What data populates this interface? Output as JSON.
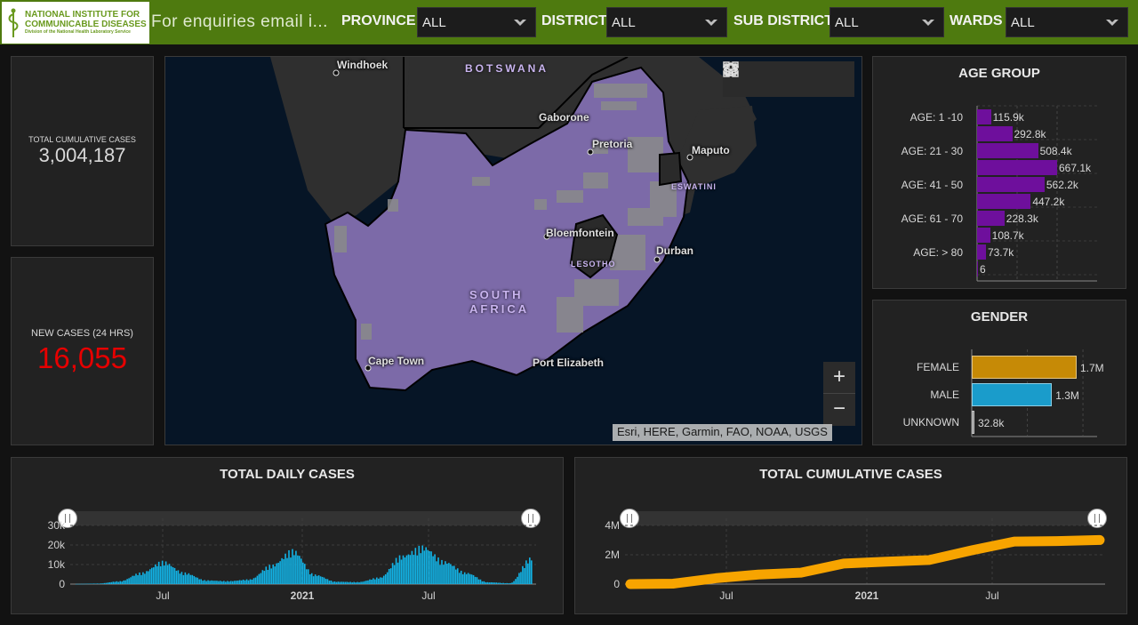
{
  "header": {
    "logo_line1": "NATIONAL INSTITUTE FOR",
    "logo_line2": "COMMUNICABLE DISEASES",
    "logo_line3": "Division of the National Health Laboratory Service",
    "enquiry": "For enquiries email i...",
    "filters": [
      {
        "label": "PROVINCE",
        "value": "ALL"
      },
      {
        "label": "DISTRICT",
        "value": "ALL"
      },
      {
        "label": "SUB DISTRICT",
        "value": "ALL"
      },
      {
        "label": "WARDS",
        "value": "ALL"
      }
    ]
  },
  "indicators": {
    "total": {
      "label": "TOTAL CUMULATIVE CASES",
      "value": "3,004,187"
    },
    "new": {
      "label": "NEW CASES (24 HRS)",
      "value": "16,055",
      "color": "#e60000"
    }
  },
  "map": {
    "attribution": "Esri, HERE, Garmin, FAO, NOAA, USGS",
    "tools": [
      "home-icon",
      "legend-list-icon",
      "layers-icon",
      "qr-basemap-icon"
    ],
    "zoom_in": "+",
    "zoom_out": "−",
    "cities": {
      "windhoek": "Windhoek",
      "gaborone": "Gaborone",
      "pretoria": "Pretoria",
      "maputo": "Maputo",
      "bloemfontein": "Bloemfontein",
      "durban": "Durban",
      "cape_town": "Cape Town",
      "port_elizabeth": "Port Elizabeth"
    },
    "countries": {
      "botswana": "BOTSWANA",
      "eswatini": "ESWATINI",
      "lesotho": "LESOTHO",
      "south_africa_1": "SOUTH",
      "south_africa_2": "AFRICA"
    },
    "colors": {
      "ocean": "#061526",
      "land": "#2f2f2f",
      "south_africa": "#7c6aa8",
      "urban": "#8a8a8a"
    }
  },
  "age_group": {
    "title": "AGE GROUP",
    "axis_labels": [
      "AGE: 1 -10",
      "AGE: 21 - 30",
      "AGE: 41 - 50",
      "AGE: 61 - 70",
      "AGE: > 80"
    ],
    "color": "#6e0f9c",
    "chart_data": {
      "type": "bar",
      "value_labels": [
        "115.9k",
        "292.8k",
        "508.4k",
        "667.1k",
        "562.2k",
        "447.2k",
        "228.3k",
        "108.7k",
        "73.7k",
        "6"
      ],
      "values": [
        115900,
        292800,
        508400,
        667100,
        562200,
        447200,
        228300,
        108700,
        73700,
        6
      ]
    }
  },
  "gender": {
    "title": "GENDER",
    "chart_data": {
      "type": "bar",
      "categories": [
        "FEMALE",
        "MALE",
        "UNKNOWN"
      ],
      "values": [
        1700000,
        1300000,
        32800
      ],
      "value_labels": [
        "1.7M",
        "1.3M",
        "32.8k"
      ],
      "colors": [
        "#c68a06",
        "#1a9ccb",
        "#8a8a8a"
      ]
    }
  },
  "daily": {
    "title": "TOTAL DAILY CASES",
    "y_ticks": [
      "30k",
      "20k",
      "10k",
      "0"
    ],
    "x_ticks": [
      "Jul",
      "2021",
      "Jul"
    ],
    "color": "#12b3e6",
    "chart_data": {
      "type": "bar",
      "ylim": [
        0,
        30000
      ],
      "x": [
        "2020-03",
        "2020-04",
        "2020-05",
        "2020-06",
        "2020-07",
        "2020-08",
        "2020-09",
        "2020-10",
        "2020-11",
        "2020-12",
        "2021-01",
        "2021-02",
        "2021-03",
        "2021-04",
        "2021-05",
        "2021-06",
        "2021-07",
        "2021-08",
        "2021-09",
        "2021-10",
        "2021-11",
        "2021-12"
      ],
      "values": [
        100,
        300,
        1500,
        6000,
        12000,
        6000,
        2000,
        1600,
        2500,
        10000,
        18000,
        5000,
        1300,
        1100,
        3500,
        15000,
        20000,
        12000,
        6000,
        1000,
        500,
        14000
      ]
    }
  },
  "cumulative": {
    "title": "TOTAL CUMULATIVE CASES",
    "y_ticks": [
      "4M",
      "2M",
      "0"
    ],
    "x_ticks": [
      "Jul",
      "2021",
      "Jul"
    ],
    "color": "#f7a400",
    "chart_data": {
      "type": "line",
      "ylim": [
        0,
        4000000
      ],
      "x": [
        "2020-03",
        "2020-05",
        "2020-07",
        "2020-09",
        "2020-11",
        "2021-01",
        "2021-03",
        "2021-05",
        "2021-07",
        "2021-09",
        "2021-11",
        "2021-12"
      ],
      "values": [
        0,
        30000,
        400000,
        650000,
        780000,
        1400000,
        1530000,
        1640000,
        2300000,
        2900000,
        2930000,
        3004187
      ]
    }
  }
}
